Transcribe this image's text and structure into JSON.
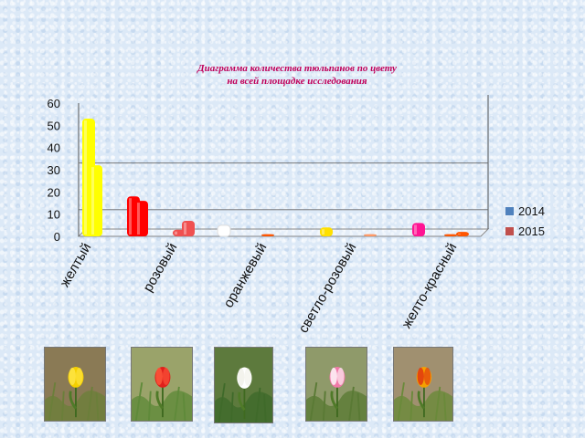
{
  "chart_data": {
    "type": "bar",
    "title_lines": [
      "Диаграмма  количества тюльпанов по цвету",
      "на всей площадке исследования"
    ],
    "categories": [
      "желтый",
      "розовый",
      "оранжевый",
      "светло-розовый",
      "желто-красный"
    ],
    "category_labels_shown": [
      "желтый",
      "розовый",
      "оранжевый",
      "светло-розовый",
      "желто-красный"
    ],
    "bars": [
      {
        "category": "желтый",
        "series": "2014",
        "value": 53,
        "color": "#ffff00"
      },
      {
        "category": "желтый",
        "series": "2015",
        "value": 32,
        "color": "#ffff00"
      },
      {
        "category": "розовый",
        "series": "2014",
        "value": 18,
        "color": "#ff0000"
      },
      {
        "category": "розовый",
        "series": "2015",
        "value": 16,
        "color": "#ff0000"
      },
      {
        "category": "розовый",
        "series": "2014",
        "value": 3,
        "color": "#f05050"
      },
      {
        "category": "розовый",
        "series": "2015",
        "value": 7,
        "color": "#f05050"
      },
      {
        "category": "оранжевый",
        "series": "2014",
        "value": 5,
        "color": "#ffffff"
      },
      {
        "category": "оранжевый",
        "series": "2015",
        "value": 1,
        "color": "#ff5500"
      },
      {
        "category": "светло-розовый",
        "series": "2014",
        "value": 4,
        "color": "#ffe000"
      },
      {
        "category": "светло-розовый",
        "series": "2015",
        "value": 1,
        "color": "#ff9966"
      },
      {
        "category": "желто-красный",
        "series": "2014",
        "value": 6,
        "color": "#ff1493"
      },
      {
        "category": "желто-красный",
        "series": "2015",
        "value": 1,
        "color": "#ff5500"
      },
      {
        "category": "желто-красный",
        "series": "2015",
        "value": 2,
        "color": "#ff5500"
      }
    ],
    "series": [
      {
        "name": "2014",
        "color": "#4f81bd"
      },
      {
        "name": "2015",
        "color": "#c0504d"
      }
    ],
    "yticks": [
      0,
      10,
      20,
      30,
      40,
      50,
      60
    ],
    "ylim": [
      0,
      60
    ],
    "reference_lines": [
      12,
      33
    ],
    "legend_position": "right",
    "grid": false
  },
  "photos": [
    {
      "name": "yellow-tulip-photo",
      "flower": "yellow",
      "ground": "#8a7a55",
      "grass": "#6b7f3a"
    },
    {
      "name": "red-tulip-photo",
      "flower": "red",
      "ground": "#9aa36a",
      "grass": "#5f8a3a"
    },
    {
      "name": "white-tulip-photo",
      "flower": "white",
      "ground": "#5d7a3d",
      "grass": "#3f6a2a"
    },
    {
      "name": "pink-tulip-photo",
      "flower": "pink",
      "ground": "#8f9a6a",
      "grass": "#5a7a35"
    },
    {
      "name": "yellow-red-tulip-photo",
      "flower": "orange",
      "ground": "#a09070",
      "grass": "#6a8a3a"
    }
  ]
}
